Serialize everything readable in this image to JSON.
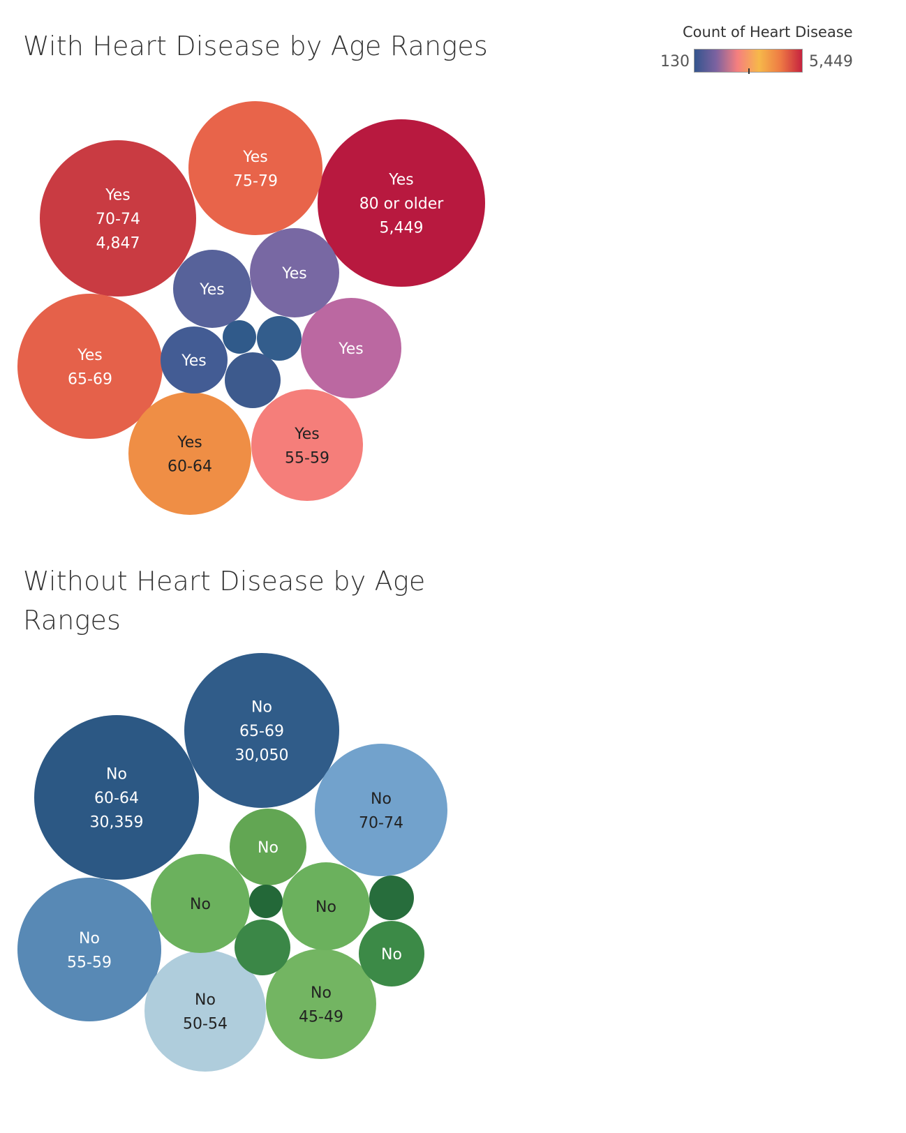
{
  "legend": {
    "title": "Count of Heart Disease",
    "min_label": "130",
    "max_label": "5,449",
    "gradient": [
      "#34558e",
      "#7c62a0",
      "#f57f7f",
      "#f6b84a",
      "#ee7a44",
      "#c6233f"
    ]
  },
  "chart_data": [
    {
      "type": "bubble",
      "title": "With Heart Disease by Age Ranges",
      "size_field": "Count of Heart Disease",
      "bubbles": [
        {
          "heart_disease": "Yes",
          "age_range": "80 or older",
          "value_label": "5,449",
          "color": "#b8193f",
          "text_color": "#ffffff"
        },
        {
          "heart_disease": "Yes",
          "age_range": "70-74",
          "value_label": "4,847",
          "color": "#c93b42",
          "text_color": "#ffffff"
        },
        {
          "heart_disease": "Yes",
          "age_range": "65-69",
          "value_label": "",
          "color": "#e5614a",
          "text_color": "#ffffff"
        },
        {
          "heart_disease": "Yes",
          "age_range": "75-79",
          "value_label": "",
          "color": "#e8644a",
          "text_color": "#ffffff"
        },
        {
          "heart_disease": "Yes",
          "age_range": "60-64",
          "value_label": "",
          "color": "#ef8e45",
          "text_color": "#222222"
        },
        {
          "heart_disease": "Yes",
          "age_range": "55-59",
          "value_label": "",
          "color": "#f57e7a",
          "text_color": "#222222"
        },
        {
          "heart_disease": "Yes",
          "age_range": "",
          "value_label": "",
          "color": "#bb68a1",
          "text_color": "#ffffff"
        },
        {
          "heart_disease": "Yes",
          "age_range": "",
          "value_label": "",
          "color": "#7868a3",
          "text_color": "#ffffff"
        },
        {
          "heart_disease": "Yes",
          "age_range": "",
          "value_label": "",
          "color": "#57629a",
          "text_color": "#ffffff"
        },
        {
          "heart_disease": "Yes",
          "age_range": "",
          "value_label": "",
          "color": "#435c94",
          "text_color": "#ffffff"
        },
        {
          "heart_disease": "",
          "age_range": "",
          "value_label": "",
          "color": "#3d5a8d",
          "text_color": "#ffffff"
        },
        {
          "heart_disease": "",
          "age_range": "",
          "value_label": "",
          "color": "#335d8c",
          "text_color": "#ffffff"
        },
        {
          "heart_disease": "",
          "age_range": "",
          "value_label": "",
          "color": "#305a8a",
          "text_color": "#ffffff"
        }
      ]
    },
    {
      "type": "bubble",
      "title": "Without Heart Disease by Age Ranges",
      "size_field": "Count of Heart Disease",
      "bubbles": [
        {
          "heart_disease": "No",
          "age_range": "60-64",
          "value_label": "30,359",
          "color": "#2c5884",
          "text_color": "#ffffff"
        },
        {
          "heart_disease": "No",
          "age_range": "65-69",
          "value_label": "30,050",
          "color": "#305c89",
          "text_color": "#ffffff"
        },
        {
          "heart_disease": "No",
          "age_range": "70-74",
          "value_label": "",
          "color": "#72a2cc",
          "text_color": "#222222"
        },
        {
          "heart_disease": "No",
          "age_range": "55-59",
          "value_label": "",
          "color": "#5889b5",
          "text_color": "#ffffff"
        },
        {
          "heart_disease": "No",
          "age_range": "50-54",
          "value_label": "",
          "color": "#afcddc",
          "text_color": "#222222"
        },
        {
          "heart_disease": "No",
          "age_range": "45-49",
          "value_label": "",
          "color": "#73b562",
          "text_color": "#222222"
        },
        {
          "heart_disease": "No",
          "age_range": "",
          "value_label": "",
          "color": "#6bb15d",
          "text_color": "#222222"
        },
        {
          "heart_disease": "No",
          "age_range": "",
          "value_label": "",
          "color": "#6bb15d",
          "text_color": "#222222"
        },
        {
          "heart_disease": "No",
          "age_range": "",
          "value_label": "",
          "color": "#62a653",
          "text_color": "#ffffff"
        },
        {
          "heart_disease": "No",
          "age_range": "",
          "value_label": "",
          "color": "#3c8a47",
          "text_color": "#ffffff"
        },
        {
          "heart_disease": "",
          "age_range": "",
          "value_label": "",
          "color": "#3b8747",
          "text_color": "#ffffff"
        },
        {
          "heart_disease": "",
          "age_range": "",
          "value_label": "",
          "color": "#276d3c",
          "text_color": "#ffffff"
        },
        {
          "heart_disease": "",
          "age_range": "",
          "value_label": "",
          "color": "#236838",
          "text_color": "#ffffff"
        }
      ]
    }
  ]
}
